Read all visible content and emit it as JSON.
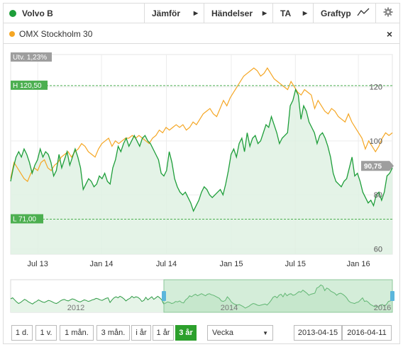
{
  "toolbar": {
    "instrument": "Volvo B",
    "instrument_color": "#1e9e3a",
    "compare_label": "Jämför",
    "events_label": "Händelser",
    "ta_label": "TA",
    "graphtype_label": "Graftyp",
    "settings_icon": "gear-icon"
  },
  "compare_row": {
    "name": "OMX Stockholm 30",
    "color": "#f5a623",
    "close_icon": "×"
  },
  "chart_data": {
    "type": "line",
    "title": "",
    "change_badge": "Utv. 1,23%",
    "high_label": "H 120,50",
    "high_value": 120.5,
    "low_label": "L 71,00",
    "low_value": 71.0,
    "last_label": "90,75",
    "last_value": 90.75,
    "ylim": [
      58,
      132
    ],
    "y_ticks": [
      60,
      80,
      100,
      120
    ],
    "y_tick_labels": [
      "60",
      "80",
      "100",
      "120"
    ],
    "x_ticks": [
      "Jul 13",
      "Jan 14",
      "Jul 14",
      "Jan 15",
      "Jul 15",
      "Jan 16"
    ],
    "x_tick_positions": [
      0.071,
      0.238,
      0.408,
      0.578,
      0.746,
      0.911
    ],
    "series": [
      {
        "name": "Volvo B",
        "color": "#1e9e3a",
        "values": [
          85,
          90,
          94,
          96,
          94,
          97,
          95,
          92,
          88,
          91,
          93,
          97,
          94,
          96,
          95,
          92,
          87,
          89,
          95,
          90,
          93,
          96,
          91,
          94,
          97,
          94,
          90,
          82,
          84,
          86,
          85,
          83,
          84,
          87,
          86,
          88,
          85,
          84,
          90,
          93,
          98,
          96,
          99,
          101,
          98,
          100,
          102,
          100,
          98,
          101,
          102,
          100,
          99,
          97,
          95,
          93,
          88,
          87,
          89,
          96,
          92,
          86,
          83,
          81,
          80,
          81,
          79,
          77,
          74,
          76,
          78,
          81,
          83,
          82,
          80,
          79,
          80,
          81,
          82,
          80,
          84,
          89,
          95,
          97,
          94,
          99,
          101,
          96,
          103,
          98,
          101,
          102,
          99,
          100,
          103,
          106,
          105,
          109,
          106,
          103,
          99,
          101,
          102,
          103,
          113,
          115,
          119,
          117,
          108,
          113,
          111,
          107,
          105,
          103,
          99,
          102,
          103,
          101,
          98,
          94,
          88,
          85,
          84,
          83,
          85,
          86,
          90,
          94,
          87,
          88,
          85,
          81,
          79,
          77,
          78,
          76,
          80,
          81,
          78,
          81,
          87,
          88,
          90
        ]
      },
      {
        "name": "OMX Stockholm 30",
        "color": "#f5a623",
        "values": [
          86,
          92,
          90,
          88,
          86,
          85,
          88,
          90,
          89,
          92,
          93,
          90,
          89,
          91,
          92,
          94,
          95,
          96,
          94,
          96,
          97,
          99,
          98,
          96,
          95,
          94,
          97,
          99,
          100,
          101,
          98,
          100,
          99,
          100,
          101,
          101,
          102,
          101,
          102,
          101,
          100,
          99,
          101,
          102,
          104,
          103,
          105,
          104,
          105,
          106,
          105,
          106,
          104,
          105,
          107,
          106,
          108,
          110,
          111,
          112,
          110,
          109,
          112,
          115,
          113,
          116,
          118,
          120,
          122,
          124,
          125,
          126,
          127,
          126,
          124,
          125,
          127,
          125,
          123,
          122,
          121,
          120,
          119,
          122,
          120,
          118,
          117,
          119,
          118,
          117,
          112,
          115,
          113,
          111,
          110,
          112,
          111,
          109,
          108,
          107,
          110,
          107,
          105,
          103,
          101,
          97,
          100,
          98,
          96,
          98,
          101,
          103,
          102,
          103
        ]
      }
    ],
    "navigator": {
      "labels": [
        "2012",
        "2014",
        "2016"
      ]
    }
  },
  "ranges": [
    {
      "label": "1 d.",
      "active": false
    },
    {
      "label": "1 v.",
      "active": false
    },
    {
      "label": "1 mån.",
      "active": false
    },
    {
      "label": "3 mån.",
      "active": false
    },
    {
      "label": "i år",
      "active": false
    },
    {
      "label": "1 år",
      "active": false
    },
    {
      "label": "3 år",
      "active": true
    }
  ],
  "interval_select": "Vecka",
  "date_from": "2013-04-15",
  "date_to": "2016-04-11"
}
